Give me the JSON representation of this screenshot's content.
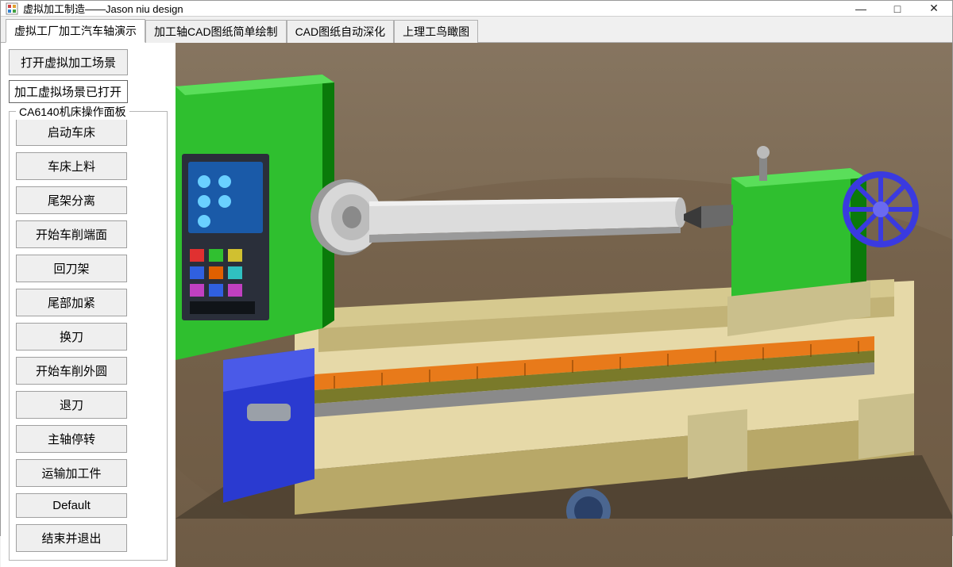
{
  "window": {
    "title": "虚拟加工制造——Jason niu design",
    "minimize": "—",
    "maximize": "□",
    "close": "✕"
  },
  "tabs": [
    {
      "label": "虚拟工厂加工汽车轴演示",
      "active": true
    },
    {
      "label": "加工轴CAD图纸简单绘制",
      "active": false
    },
    {
      "label": "CAD图纸自动深化",
      "active": false
    },
    {
      "label": "上理工鸟瞰图",
      "active": false
    }
  ],
  "sidebar": {
    "open_scene_btn": "打开虚拟加工场景",
    "scene_status": "加工虚拟场景已打开",
    "panel_legend": "CA6140机床操作面板",
    "panel_buttons": [
      "启动车床",
      "车床上料",
      "尾架分离",
      "开始车削端面",
      "回刀架",
      "尾部加紧",
      "换刀",
      "开始车削外圆",
      "退刀",
      "主轴停转",
      "运输加工件",
      "Default",
      "结束并退出"
    ]
  },
  "scene": {
    "type": "3d-render",
    "description": "CA6140 lathe machine with green headstock and tailstock, tan bed, cylindrical workpiece, control panel with colored buttons and blue handwheel",
    "colors": {
      "floor": "#7a6750",
      "headstock": "#2fbf2f",
      "headstock_shadow": "#0a7a0a",
      "tailstock": "#2fbf2f",
      "bed": "#e6d9a8",
      "bed_shadow": "#b8a868",
      "workpiece": "#c9c9c9",
      "chuck": "#d0d0d0",
      "leadscrew_orange": "#e87a1a",
      "feedrod_olive": "#7a7a2a",
      "feedrod_gray": "#8a8a8a",
      "control_panel": "#2a2f3a",
      "display": "#1a5aa8",
      "handwheel": "#3a3ae0",
      "apron_blue": "#2a3ad0"
    }
  }
}
